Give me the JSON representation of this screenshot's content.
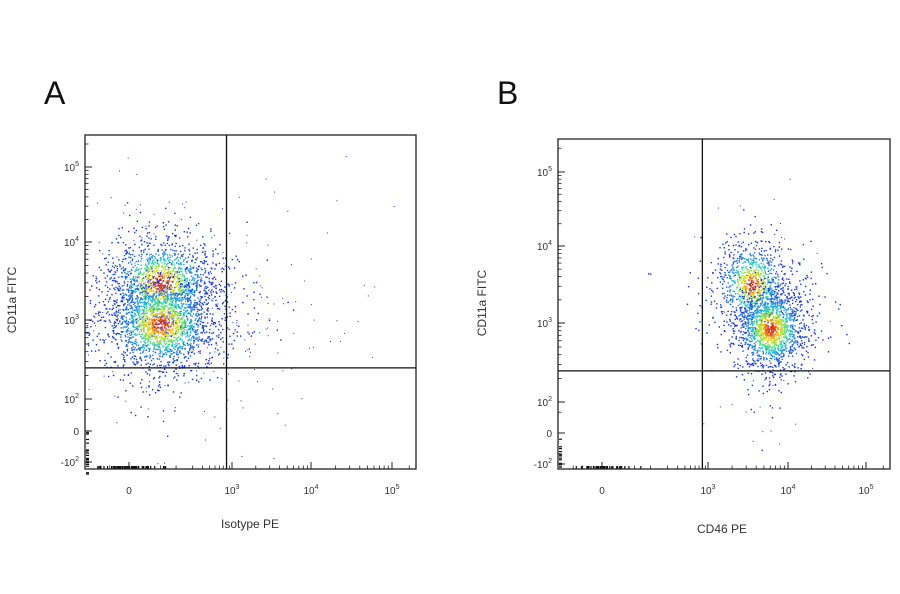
{
  "chart_data": [
    {
      "type": "scatter",
      "panel": "A",
      "xlabel": "Isotype PE",
      "ylabel": "CD11a FITC",
      "x_scale": "biexponential",
      "y_scale": "biexponential",
      "x_ticks": [
        "0",
        "10^3",
        "10^4",
        "10^5"
      ],
      "y_ticks": [
        "-10^2",
        "0",
        "10^2",
        "10^3",
        "10^4",
        "10^5"
      ],
      "quadrant_gate": {
        "x": 800,
        "y": 250
      },
      "populations": [
        {
          "x_center": 50,
          "y_center": 3000,
          "count": 1400,
          "peak_color": "#e02010"
        },
        {
          "x_center": 50,
          "y_center": 900,
          "count": 1900,
          "peak_color": "#e02010"
        }
      ],
      "colors": {
        "low": "#1a2fd8",
        "mid": "#2bd3b8",
        "high": "#e02010"
      },
      "grid": false
    },
    {
      "type": "scatter",
      "panel": "B",
      "xlabel": "CD46 PE",
      "ylabel": "CD11a FITC",
      "x_scale": "biexponential",
      "y_scale": "biexponential",
      "x_ticks": [
        "0",
        "10^3",
        "10^4",
        "10^5"
      ],
      "y_ticks": [
        "-10^2",
        "0",
        "10^2",
        "10^3",
        "10^4",
        "10^5"
      ],
      "quadrant_gate": {
        "x": 800,
        "y": 250
      },
      "populations": [
        {
          "x_center": 3500,
          "y_center": 3200,
          "count": 900,
          "peak_color": "#e02010"
        },
        {
          "x_center": 6000,
          "y_center": 850,
          "count": 1500,
          "peak_color": "#e02010"
        }
      ],
      "colors": {
        "low": "#1a2fd8",
        "mid": "#2bd3b8",
        "high": "#e02010"
      },
      "grid": false
    }
  ]
}
